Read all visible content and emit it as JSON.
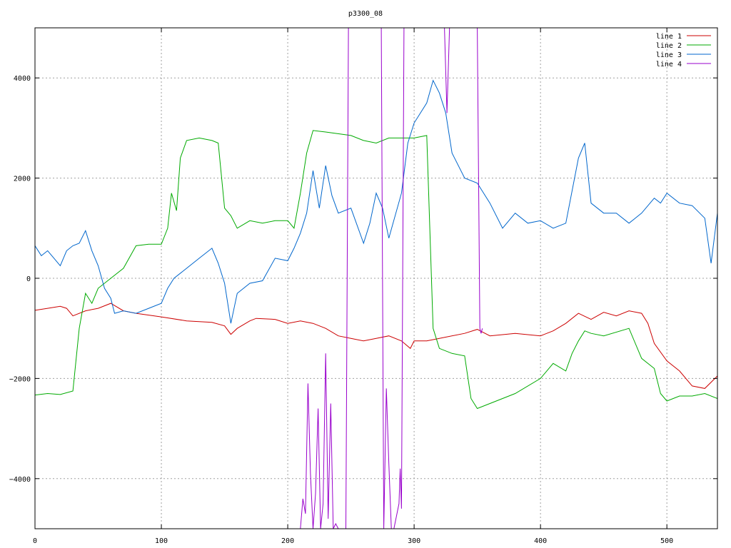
{
  "chart_data": {
    "type": "line",
    "title": "p3300_08",
    "xlabel": "",
    "ylabel": "",
    "xlim": [
      0,
      540
    ],
    "ylim": [
      -5000,
      5000
    ],
    "x_ticks": [
      0,
      100,
      200,
      300,
      400,
      500
    ],
    "y_ticks": [
      -4000,
      -2000,
      0,
      2000,
      4000
    ],
    "y_tick_labels": [
      "−4000",
      "−2000",
      "0",
      "2000",
      "4000"
    ],
    "grid": true,
    "legend_position": "top-right",
    "series": [
      {
        "name": "line 1",
        "color": "#cc0000",
        "points": [
          [
            0,
            -640
          ],
          [
            10,
            -600
          ],
          [
            20,
            -560
          ],
          [
            25,
            -600
          ],
          [
            30,
            -750
          ],
          [
            40,
            -650
          ],
          [
            50,
            -600
          ],
          [
            60,
            -500
          ],
          [
            70,
            -650
          ],
          [
            80,
            -700
          ],
          [
            100,
            -770
          ],
          [
            120,
            -850
          ],
          [
            140,
            -880
          ],
          [
            150,
            -950
          ],
          [
            155,
            -1120
          ],
          [
            160,
            -1000
          ],
          [
            170,
            -850
          ],
          [
            175,
            -800
          ],
          [
            190,
            -820
          ],
          [
            200,
            -900
          ],
          [
            210,
            -850
          ],
          [
            220,
            -900
          ],
          [
            230,
            -1000
          ],
          [
            240,
            -1150
          ],
          [
            250,
            -1200
          ],
          [
            260,
            -1250
          ],
          [
            270,
            -1200
          ],
          [
            280,
            -1150
          ],
          [
            290,
            -1250
          ],
          [
            297,
            -1400
          ],
          [
            300,
            -1250
          ],
          [
            310,
            -1250
          ],
          [
            320,
            -1200
          ],
          [
            340,
            -1100
          ],
          [
            350,
            -1020
          ],
          [
            360,
            -1150
          ],
          [
            380,
            -1100
          ],
          [
            400,
            -1150
          ],
          [
            410,
            -1050
          ],
          [
            420,
            -900
          ],
          [
            430,
            -700
          ],
          [
            440,
            -820
          ],
          [
            450,
            -680
          ],
          [
            460,
            -750
          ],
          [
            470,
            -650
          ],
          [
            480,
            -700
          ],
          [
            485,
            -900
          ],
          [
            490,
            -1300
          ],
          [
            500,
            -1650
          ],
          [
            510,
            -1850
          ],
          [
            520,
            -2150
          ],
          [
            530,
            -2200
          ],
          [
            540,
            -1950
          ]
        ]
      },
      {
        "name": "line 2",
        "color": "#00aa00",
        "points": [
          [
            0,
            -2330
          ],
          [
            10,
            -2300
          ],
          [
            20,
            -2320
          ],
          [
            30,
            -2250
          ],
          [
            35,
            -1000
          ],
          [
            40,
            -300
          ],
          [
            45,
            -500
          ],
          [
            50,
            -200
          ],
          [
            60,
            0
          ],
          [
            70,
            200
          ],
          [
            80,
            650
          ],
          [
            90,
            680
          ],
          [
            100,
            680
          ],
          [
            105,
            1000
          ],
          [
            108,
            1700
          ],
          [
            112,
            1350
          ],
          [
            115,
            2400
          ],
          [
            120,
            2750
          ],
          [
            130,
            2800
          ],
          [
            140,
            2750
          ],
          [
            145,
            2700
          ],
          [
            150,
            1400
          ],
          [
            155,
            1250
          ],
          [
            160,
            1000
          ],
          [
            170,
            1150
          ],
          [
            180,
            1100
          ],
          [
            190,
            1150
          ],
          [
            200,
            1150
          ],
          [
            205,
            1000
          ],
          [
            210,
            1700
          ],
          [
            215,
            2500
          ],
          [
            220,
            2950
          ],
          [
            230,
            2920
          ],
          [
            250,
            2850
          ],
          [
            260,
            2750
          ],
          [
            270,
            2700
          ],
          [
            280,
            2800
          ],
          [
            300,
            2800
          ],
          [
            310,
            2850
          ],
          [
            315,
            -1000
          ],
          [
            320,
            -1400
          ],
          [
            330,
            -1500
          ],
          [
            340,
            -1550
          ],
          [
            345,
            -2400
          ],
          [
            350,
            -2600
          ],
          [
            360,
            -2500
          ],
          [
            380,
            -2300
          ],
          [
            400,
            -2000
          ],
          [
            410,
            -1700
          ],
          [
            420,
            -1850
          ],
          [
            425,
            -1500
          ],
          [
            430,
            -1250
          ],
          [
            435,
            -1050
          ],
          [
            440,
            -1100
          ],
          [
            450,
            -1150
          ],
          [
            470,
            -1000
          ],
          [
            480,
            -1600
          ],
          [
            490,
            -1800
          ],
          [
            495,
            -2300
          ],
          [
            500,
            -2450
          ],
          [
            510,
            -2350
          ],
          [
            520,
            -2350
          ],
          [
            530,
            -2300
          ],
          [
            540,
            -2400
          ]
        ]
      },
      {
        "name": "line 3",
        "color": "#0066cc",
        "points": [
          [
            0,
            650
          ],
          [
            5,
            450
          ],
          [
            10,
            550
          ],
          [
            15,
            400
          ],
          [
            20,
            250
          ],
          [
            25,
            550
          ],
          [
            30,
            650
          ],
          [
            35,
            700
          ],
          [
            40,
            950
          ],
          [
            45,
            550
          ],
          [
            50,
            250
          ],
          [
            55,
            -200
          ],
          [
            60,
            -400
          ],
          [
            63,
            -700
          ],
          [
            70,
            -650
          ],
          [
            80,
            -700
          ],
          [
            90,
            -600
          ],
          [
            100,
            -500
          ],
          [
            105,
            -200
          ],
          [
            110,
            0
          ],
          [
            120,
            200
          ],
          [
            130,
            400
          ],
          [
            140,
            600
          ],
          [
            145,
            300
          ],
          [
            150,
            -100
          ],
          [
            155,
            -900
          ],
          [
            160,
            -300
          ],
          [
            170,
            -100
          ],
          [
            180,
            -50
          ],
          [
            190,
            400
          ],
          [
            200,
            350
          ],
          [
            205,
            600
          ],
          [
            210,
            900
          ],
          [
            215,
            1300
          ],
          [
            220,
            2150
          ],
          [
            225,
            1400
          ],
          [
            230,
            2250
          ],
          [
            235,
            1650
          ],
          [
            240,
            1300
          ],
          [
            250,
            1400
          ],
          [
            260,
            700
          ],
          [
            265,
            1100
          ],
          [
            270,
            1700
          ],
          [
            275,
            1400
          ],
          [
            280,
            800
          ],
          [
            290,
            1700
          ],
          [
            295,
            2700
          ],
          [
            300,
            3100
          ],
          [
            310,
            3500
          ],
          [
            315,
            3950
          ],
          [
            320,
            3700
          ],
          [
            325,
            3300
          ],
          [
            330,
            2500
          ],
          [
            340,
            2000
          ],
          [
            350,
            1900
          ],
          [
            360,
            1500
          ],
          [
            370,
            1000
          ],
          [
            380,
            1300
          ],
          [
            390,
            1100
          ],
          [
            400,
            1150
          ],
          [
            410,
            1000
          ],
          [
            420,
            1100
          ],
          [
            430,
            2400
          ],
          [
            435,
            2700
          ],
          [
            440,
            1500
          ],
          [
            450,
            1300
          ],
          [
            460,
            1300
          ],
          [
            470,
            1100
          ],
          [
            480,
            1300
          ],
          [
            490,
            1600
          ],
          [
            495,
            1500
          ],
          [
            500,
            1700
          ],
          [
            510,
            1500
          ],
          [
            520,
            1450
          ],
          [
            530,
            1200
          ],
          [
            535,
            300
          ],
          [
            540,
            1300
          ]
        ]
      },
      {
        "name": "line 4",
        "color": "#9900cc",
        "points": [
          [
            210,
            -5000
          ],
          [
            212,
            -4400
          ],
          [
            214,
            -4700
          ],
          [
            216,
            -2100
          ],
          [
            218,
            -3900
          ],
          [
            220,
            -5000
          ],
          [
            222,
            -4300
          ],
          [
            224,
            -2600
          ],
          [
            226,
            -5000
          ],
          [
            228,
            -4500
          ],
          [
            230,
            -1500
          ],
          [
            232,
            -4800
          ],
          [
            234,
            -2500
          ],
          [
            236,
            -5000
          ],
          [
            238,
            -4900
          ],
          [
            240,
            -5000
          ],
          [
            246,
            -5000
          ],
          [
            248,
            5000
          ],
          [
            250,
            5000
          ],
          [
            274,
            5000
          ],
          [
            276,
            -5000
          ],
          [
            278,
            -2200
          ],
          [
            280,
            -3700
          ],
          [
            282,
            -5000
          ],
          [
            284,
            -5000
          ],
          [
            288,
            -4500
          ],
          [
            289,
            -3800
          ],
          [
            290,
            -4600
          ],
          [
            292,
            5000
          ],
          [
            294,
            5000
          ],
          [
            324,
            5000
          ],
          [
            326,
            3300
          ],
          [
            328,
            5000
          ],
          [
            350,
            5000
          ],
          [
            352,
            -1000
          ],
          [
            353,
            -1100
          ],
          [
            354,
            -1000
          ]
        ]
      }
    ]
  }
}
